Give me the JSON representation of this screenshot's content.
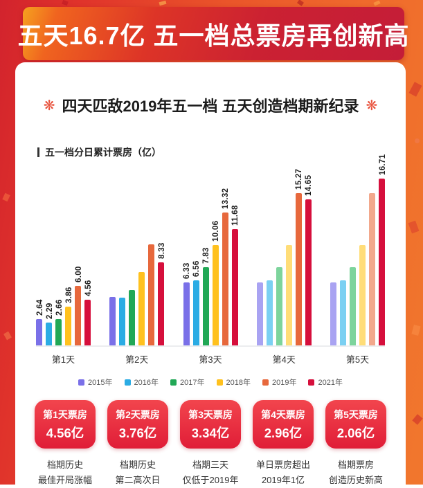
{
  "banner": {
    "title": "五天16.7亿 五一档总票房再创新高"
  },
  "card": {
    "title": "四天匹敌2019年五一档 五天创造档期新纪录",
    "decor_icon": "❋"
  },
  "chart_data": {
    "type": "bar",
    "title": "五一档分日累计票房（亿）",
    "unit": "亿",
    "ylim": [
      0,
      17.6
    ],
    "grid": false,
    "legend_position": "bottom",
    "categories": [
      "第1天",
      "第2天",
      "第3天",
      "第4天",
      "第5天"
    ],
    "series": [
      {
        "name": "2015年",
        "color": "#7a70e8",
        "faded_color": "#a9a3f2",
        "faded_from_index": 3,
        "values": [
          2.64,
          4.89,
          6.33,
          6.33,
          6.33
        ],
        "labels": [
          "2.64",
          "",
          "6.33",
          "",
          ""
        ]
      },
      {
        "name": "2016年",
        "color": "#2bace4",
        "faded_color": "#7bd0f2",
        "faded_from_index": 3,
        "values": [
          2.29,
          4.8,
          6.56,
          6.56,
          6.56
        ],
        "labels": [
          "2.29",
          "",
          "6.56",
          "",
          ""
        ]
      },
      {
        "name": "2017年",
        "color": "#21a856",
        "faded_color": "#7dd49c",
        "faded_from_index": 3,
        "values": [
          2.66,
          5.54,
          7.83,
          7.83,
          7.83
        ],
        "labels": [
          "2.66",
          "",
          "7.83",
          "",
          ""
        ]
      },
      {
        "name": "2018年",
        "color": "#ffc11e",
        "faded_color": "#ffdd78",
        "faded_from_index": 3,
        "values": [
          3.86,
          7.36,
          10.06,
          10.06,
          10.06
        ],
        "labels": [
          "3.86",
          "",
          "10.06",
          "",
          ""
        ]
      },
      {
        "name": "2019年",
        "color": "#e7683c",
        "faded_color": "#f2a88c",
        "faded_from_index": 4,
        "values": [
          6.0,
          10.15,
          13.32,
          15.27,
          15.27
        ],
        "labels": [
          "6.00",
          "",
          "13.32",
          "15.27",
          ""
        ]
      },
      {
        "name": "2021年",
        "color": "#d60f3c",
        "faded_color": "#d60f3c",
        "faded_from_index": 5,
        "values": [
          4.56,
          8.33,
          11.68,
          14.65,
          16.71
        ],
        "labels": [
          "4.56",
          "8.33",
          "11.68",
          "14.65",
          "16.71"
        ]
      }
    ]
  },
  "badges": [
    {
      "title": "第1天票房",
      "value": "4.56亿",
      "desc": [
        "档期历史",
        "最佳开局涨幅"
      ]
    },
    {
      "title": "第2天票房",
      "value": "3.76亿",
      "desc": [
        "档期历史",
        "第二高次日"
      ]
    },
    {
      "title": "第3天票房",
      "value": "3.34亿",
      "desc": [
        "档期三天",
        "仅低于2019年"
      ]
    },
    {
      "title": "第4天票房",
      "value": "2.96亿",
      "desc": [
        "单日票房超出",
        "2019年1亿"
      ]
    },
    {
      "title": "第5天票房",
      "value": "2.06亿",
      "desc": [
        "档期票房",
        "创造历史新高"
      ]
    }
  ],
  "colors": {
    "badge_red": "#e6213a",
    "banner_red": "#cb1f36",
    "background_orange": "#ef6a2c",
    "background_red": "#d2232d",
    "accent_flower": "#e8503a",
    "bar_label": "#1e1e1e"
  }
}
